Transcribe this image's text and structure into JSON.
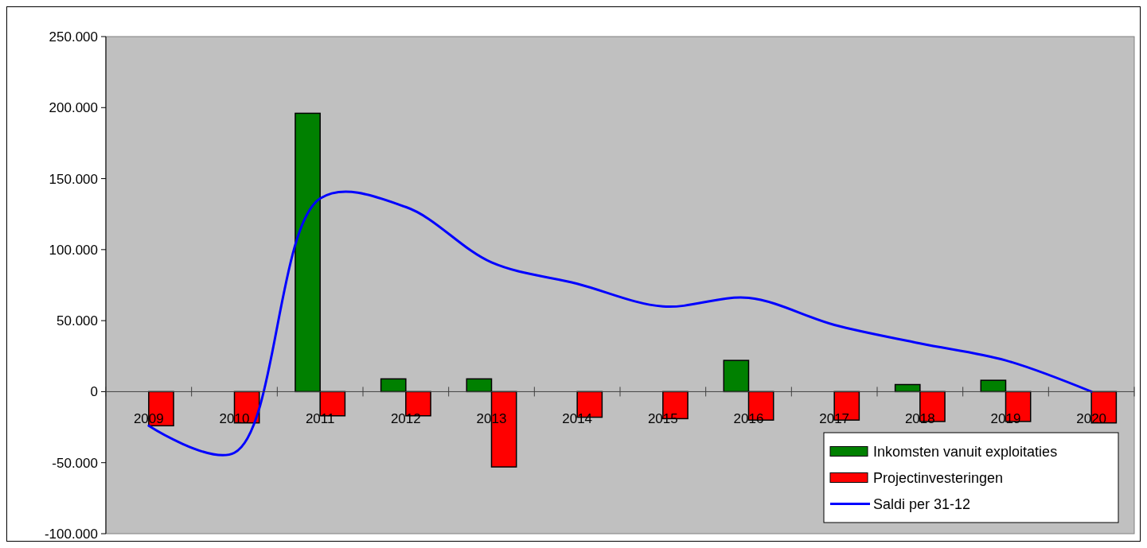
{
  "chart_data": {
    "type": "bar",
    "categories": [
      "2009",
      "2010",
      "2011",
      "2012",
      "2013",
      "2014",
      "2015",
      "2016",
      "2017",
      "2018",
      "2019",
      "2020"
    ],
    "series": [
      {
        "name": "Inkomsten vanuit exploitaties",
        "color": "#008000",
        "values": [
          null,
          null,
          196000,
          9000,
          9000,
          null,
          null,
          22000,
          null,
          5000,
          8000,
          null
        ]
      },
      {
        "name": "Projectinvesteringen",
        "color": "#ff0000",
        "values": [
          -24000,
          -22000,
          -17000,
          -17000,
          -53000,
          -18000,
          -19000,
          -20000,
          -20000,
          -21000,
          -21000,
          -22000
        ]
      },
      {
        "name": "Saldi per 31-12",
        "type": "line",
        "color": "#0000ff",
        "values": [
          -24000,
          -43000,
          136000,
          130000,
          91000,
          76000,
          60000,
          66000,
          47000,
          34000,
          22000,
          0
        ]
      }
    ],
    "ylim": [
      -100000,
      250000
    ],
    "yticks": [
      {
        "value": -100000,
        "label": "-100.000"
      },
      {
        "value": -50000,
        "label": "-50.000"
      },
      {
        "value": 0,
        "label": "0"
      },
      {
        "value": 50000,
        "label": "50.000"
      },
      {
        "value": 100000,
        "label": "100.000"
      },
      {
        "value": 150000,
        "label": "150.000"
      },
      {
        "value": 200000,
        "label": "200.000"
      },
      {
        "value": 250000,
        "label": "250.000"
      }
    ],
    "grid": false,
    "legend": "bottom right"
  }
}
